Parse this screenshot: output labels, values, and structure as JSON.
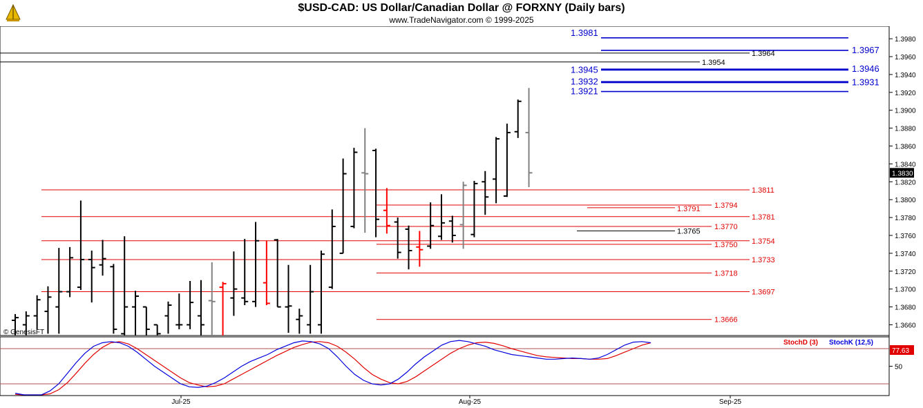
{
  "header": {
    "title": "$USD-CAD:  US Dollar/Canadian Dollar @ FORXNY  (Daily bars)",
    "subtitle": "www.TradeNavigator.com © 1999-2025",
    "logo_icon": "trade-navigator-logo-icon"
  },
  "watermark": "© GenesisFT",
  "colors": {
    "bar": "#000000",
    "bar_gray": "#808080",
    "bar_red": "#ff0000",
    "fib_blue": "#0000cc",
    "fib_red": "#e00000",
    "fib_black": "#000000",
    "stoch_d": "#e00000",
    "stoch_k": "#0000dd",
    "last_price_bg": "#000000"
  },
  "chart_data": [
    {
      "type": "ohlc",
      "title": "$USD-CAD:  US Dollar/Canadian Dollar @ FORXNY  (Daily bars)",
      "ylim": [
        1.3648,
        1.3994
      ],
      "y_ticks": [
        "1.3660",
        "1.3680",
        "1.3700",
        "1.3720",
        "1.3740",
        "1.3760",
        "1.3780",
        "1.3800",
        "1.3820",
        "1.3840",
        "1.3860",
        "1.3880",
        "1.3900",
        "1.3920",
        "1.3940",
        "1.3960",
        "1.3980"
      ],
      "x_ticks": [
        "Jul-25",
        "Aug-25",
        "Sep-25"
      ],
      "last_price": "1.3830",
      "bars": [
        {
          "o": 1.3665,
          "h": 1.3672,
          "l": 1.3645,
          "c": 1.3668,
          "color": "black"
        },
        {
          "o": 1.366,
          "h": 1.3675,
          "l": 1.3645,
          "c": 1.367,
          "color": "black"
        },
        {
          "o": 1.367,
          "h": 1.3693,
          "l": 1.3655,
          "c": 1.3688,
          "color": "black"
        },
        {
          "o": 1.3675,
          "h": 1.3703,
          "l": 1.365,
          "c": 1.3691,
          "color": "black"
        },
        {
          "o": 1.368,
          "h": 1.3746,
          "l": 1.365,
          "c": 1.3697,
          "color": "black"
        },
        {
          "o": 1.3697,
          "h": 1.3747,
          "l": 1.3691,
          "c": 1.3735,
          "color": "black"
        },
        {
          "o": 1.3702,
          "h": 1.3799,
          "l": 1.3699,
          "c": 1.3733,
          "color": "black"
        },
        {
          "o": 1.3733,
          "h": 1.3743,
          "l": 1.3685,
          "c": 1.3724,
          "color": "black"
        },
        {
          "o": 1.3727,
          "h": 1.3755,
          "l": 1.3715,
          "c": 1.3734,
          "color": "black"
        },
        {
          "o": 1.3725,
          "h": 1.3728,
          "l": 1.365,
          "c": 1.3655,
          "color": "black"
        },
        {
          "o": 1.365,
          "h": 1.3759,
          "l": 1.3645,
          "c": 1.368,
          "color": "black"
        },
        {
          "o": 1.368,
          "h": 1.3698,
          "l": 1.3645,
          "c": 1.3692,
          "color": "black"
        },
        {
          "o": 1.368,
          "h": 1.368,
          "l": 1.3645,
          "c": 1.3655,
          "color": "black"
        },
        {
          "o": 1.366,
          "h": 1.366,
          "l": 1.3645,
          "c": 1.365,
          "color": "black"
        },
        {
          "o": 1.367,
          "h": 1.3686,
          "l": 1.365,
          "c": 1.3682,
          "color": "black"
        },
        {
          "o": 1.366,
          "h": 1.3695,
          "l": 1.3655,
          "c": 1.366,
          "color": "black"
        },
        {
          "o": 1.366,
          "h": 1.3709,
          "l": 1.3655,
          "c": 1.3685,
          "color": "black"
        },
        {
          "o": 1.367,
          "h": 1.371,
          "l": 1.3645,
          "c": 1.366,
          "color": "black"
        },
        {
          "o": 1.3687,
          "h": 1.373,
          "l": 1.3645,
          "c": 1.3686,
          "color": "gray"
        },
        {
          "o": 1.3702,
          "h": 1.3708,
          "l": 1.3645,
          "c": 1.3706,
          "color": "red"
        },
        {
          "o": 1.369,
          "h": 1.3742,
          "l": 1.367,
          "c": 1.37,
          "color": "black"
        },
        {
          "o": 1.369,
          "h": 1.3756,
          "l": 1.3682,
          "c": 1.3686,
          "color": "black"
        },
        {
          "o": 1.3686,
          "h": 1.3775,
          "l": 1.368,
          "c": 1.3754,
          "color": "black"
        },
        {
          "o": 1.3707,
          "h": 1.3754,
          "l": 1.3682,
          "c": 1.3684,
          "color": "red"
        },
        {
          "o": 1.3755,
          "h": 1.3756,
          "l": 1.368,
          "c": 1.368,
          "color": "black"
        },
        {
          "o": 1.368,
          "h": 1.3727,
          "l": 1.3651,
          "c": 1.3681,
          "color": "black"
        },
        {
          "o": 1.3666,
          "h": 1.3678,
          "l": 1.365,
          "c": 1.367,
          "color": "black"
        },
        {
          "o": 1.366,
          "h": 1.3727,
          "l": 1.365,
          "c": 1.3697,
          "color": "black"
        },
        {
          "o": 1.366,
          "h": 1.3743,
          "l": 1.365,
          "c": 1.3739,
          "color": "black"
        },
        {
          "o": 1.3702,
          "h": 1.3789,
          "l": 1.37,
          "c": 1.377,
          "color": "black"
        },
        {
          "o": 1.374,
          "h": 1.3846,
          "l": 1.374,
          "c": 1.3829,
          "color": "black"
        },
        {
          "o": 1.377,
          "h": 1.3858,
          "l": 1.3768,
          "c": 1.3853,
          "color": "black"
        },
        {
          "o": 1.383,
          "h": 1.388,
          "l": 1.3763,
          "c": 1.3829,
          "color": "gray"
        },
        {
          "o": 1.3855,
          "h": 1.3857,
          "l": 1.3758,
          "c": 1.3778,
          "color": "black"
        },
        {
          "o": 1.3788,
          "h": 1.3813,
          "l": 1.3762,
          "c": 1.3771,
          "color": "red"
        },
        {
          "o": 1.3775,
          "h": 1.378,
          "l": 1.3734,
          "c": 1.3741,
          "color": "black"
        },
        {
          "o": 1.3767,
          "h": 1.3771,
          "l": 1.3722,
          "c": 1.3743,
          "color": "black"
        },
        {
          "o": 1.3747,
          "h": 1.3765,
          "l": 1.3725,
          "c": 1.3744,
          "color": "red"
        },
        {
          "o": 1.3748,
          "h": 1.3797,
          "l": 1.3745,
          "c": 1.3771,
          "color": "black"
        },
        {
          "o": 1.3759,
          "h": 1.3806,
          "l": 1.3755,
          "c": 1.3774,
          "color": "black"
        },
        {
          "o": 1.3776,
          "h": 1.3782,
          "l": 1.3752,
          "c": 1.376,
          "color": "black"
        },
        {
          "o": 1.3772,
          "h": 1.382,
          "l": 1.3745,
          "c": 1.3816,
          "color": "gray"
        },
        {
          "o": 1.3761,
          "h": 1.3821,
          "l": 1.3758,
          "c": 1.3818,
          "color": "black"
        },
        {
          "o": 1.382,
          "h": 1.3832,
          "l": 1.3783,
          "c": 1.3803,
          "color": "black"
        },
        {
          "o": 1.3823,
          "h": 1.387,
          "l": 1.3796,
          "c": 1.3868,
          "color": "black"
        },
        {
          "o": 1.3804,
          "h": 1.3885,
          "l": 1.3803,
          "c": 1.3875,
          "color": "black"
        },
        {
          "o": 1.3876,
          "h": 1.3912,
          "l": 1.3869,
          "c": 1.391,
          "color": "black"
        },
        {
          "o": 1.3875,
          "h": 1.3925,
          "l": 1.3814,
          "c": 1.383,
          "color": "gray"
        }
      ],
      "levels": [
        {
          "label": "1.3981",
          "value": 1.3981,
          "color": "blue"
        },
        {
          "label": "1.3967",
          "value": 1.3967,
          "color": "blue"
        },
        {
          "label": "1.3964",
          "value": 1.3964,
          "color": "black"
        },
        {
          "label": "1.3954",
          "value": 1.3954,
          "color": "black"
        },
        {
          "label": "1.3945",
          "value": 1.3945,
          "color": "blue"
        },
        {
          "label": "1.3946",
          "value": 1.3946,
          "color": "blue"
        },
        {
          "label": "1.3932",
          "value": 1.3932,
          "color": "blue"
        },
        {
          "label": "1.3931",
          "value": 1.3931,
          "color": "blue"
        },
        {
          "label": "1.3921",
          "value": 1.3921,
          "color": "blue"
        },
        {
          "label": "1.3811",
          "value": 1.3811,
          "color": "red"
        },
        {
          "label": "1.3794",
          "value": 1.3794,
          "color": "red"
        },
        {
          "label": "1.3791",
          "value": 1.3791,
          "color": "red"
        },
        {
          "label": "1.3781",
          "value": 1.3781,
          "color": "red"
        },
        {
          "label": "1.3770",
          "value": 1.377,
          "color": "red"
        },
        {
          "label": "1.3765",
          "value": 1.3765,
          "color": "black"
        },
        {
          "label": "1.3754",
          "value": 1.3754,
          "color": "red"
        },
        {
          "label": "1.3750",
          "value": 1.375,
          "color": "red"
        },
        {
          "label": "1.3733",
          "value": 1.3733,
          "color": "red"
        },
        {
          "label": "1.3718",
          "value": 1.3718,
          "color": "red"
        },
        {
          "label": "1.3697",
          "value": 1.3697,
          "color": "red"
        },
        {
          "label": "1.3666",
          "value": 1.3666,
          "color": "red"
        }
      ]
    },
    {
      "type": "line",
      "title": "",
      "ylim": [
        0,
        100
      ],
      "y_ticks": [
        "50"
      ],
      "reference_line": 80,
      "last_value": "77.63",
      "series": [
        {
          "name": "StochD (3)",
          "color": "red",
          "values": [
            2,
            1,
            0,
            0,
            3,
            10,
            22,
            38,
            55,
            70,
            82,
            90,
            92,
            88,
            80,
            70,
            60,
            50,
            40,
            30,
            22,
            18,
            15,
            16,
            20,
            28,
            36,
            44,
            52,
            60,
            68,
            75,
            82,
            87,
            91,
            92,
            90,
            84,
            74,
            62,
            48,
            36,
            28,
            22,
            20,
            24,
            32,
            42,
            52,
            62,
            72,
            80,
            86,
            90,
            91,
            89,
            85,
            80,
            76,
            72,
            68,
            66,
            65,
            64,
            63,
            63,
            62,
            62,
            63,
            68,
            74,
            80,
            86,
            90
          ]
        },
        {
          "name": "StochK (12,5)",
          "color": "blue",
          "values": [
            4,
            1,
            -2,
            0,
            8,
            20,
            38,
            56,
            72,
            84,
            90,
            92,
            90,
            84,
            74,
            62,
            50,
            40,
            30,
            20,
            15,
            14,
            16,
            22,
            30,
            40,
            50,
            58,
            64,
            70,
            78,
            84,
            90,
            93,
            92,
            88,
            80,
            66,
            50,
            36,
            26,
            20,
            18,
            20,
            28,
            40,
            54,
            66,
            76,
            86,
            92,
            94,
            92,
            88,
            84,
            78,
            74,
            70,
            68,
            66,
            64,
            62,
            62,
            63,
            64,
            63,
            62,
            64,
            70,
            78,
            86,
            91,
            92,
            90
          ]
        }
      ]
    }
  ],
  "stoch_labels": {
    "d": "StochD (3)",
    "k": "StochK (12,5)"
  }
}
